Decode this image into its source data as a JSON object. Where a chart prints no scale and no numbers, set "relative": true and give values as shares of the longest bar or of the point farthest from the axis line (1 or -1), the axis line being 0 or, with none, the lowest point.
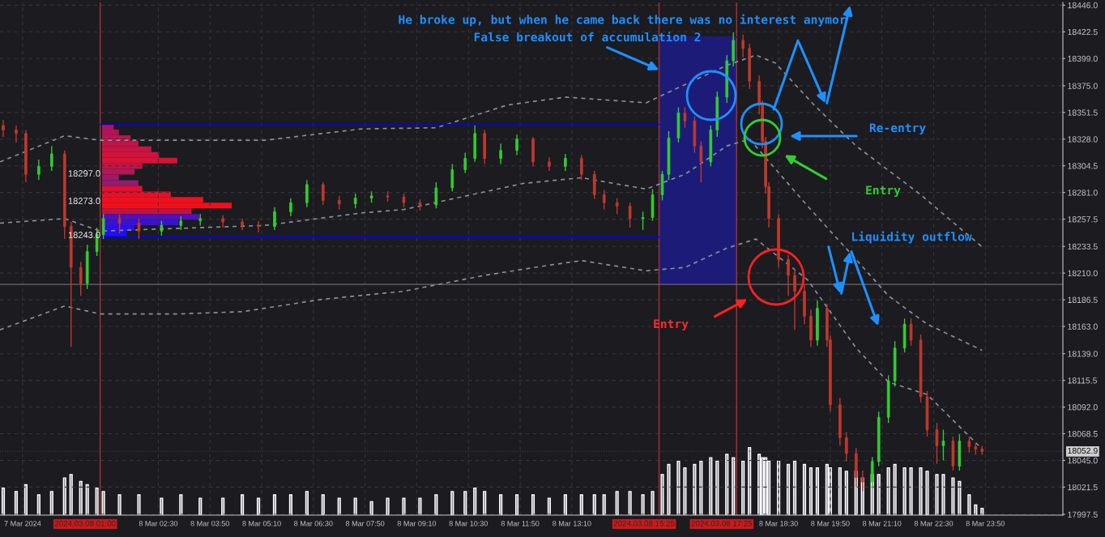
{
  "chart_data": [
    {
      "type": "candlestick",
      "x": [
        "2024-03-07T22:30",
        "2024-03-07T22:50",
        "2024-03-07T23:05",
        "2024-03-07T23:25",
        "2024-03-07T23:45",
        "2024-03-08T00:05",
        "2024-03-08T00:15",
        "2024-03-08T00:30",
        "2024-03-08T00:40",
        "2024-03-08T00:55",
        "2024-03-08T01:05",
        "2024-03-08T01:30",
        "2024-03-08T02:00",
        "2024-03-08T02:35",
        "2024-03-08T03:05",
        "2024-03-08T03:35",
        "2024-03-08T04:10",
        "2024-03-08T04:40",
        "2024-03-08T05:05",
        "2024-03-08T05:30",
        "2024-03-08T05:55",
        "2024-03-08T06:20",
        "2024-03-08T06:45",
        "2024-03-08T07:10",
        "2024-03-08T07:35",
        "2024-03-08T08:00",
        "2024-03-08T08:25",
        "2024-03-08T08:50",
        "2024-03-08T09:15",
        "2024-03-08T09:40",
        "2024-03-08T10:05",
        "2024-03-08T10:25",
        "2024-03-08T10:40",
        "2024-03-08T10:55",
        "2024-03-08T11:20",
        "2024-03-08T11:45",
        "2024-03-08T12:10",
        "2024-03-08T12:35",
        "2024-03-08T13:00",
        "2024-03-08T13:25",
        "2024-03-08T13:45",
        "2024-03-08T14:00",
        "2024-03-08T14:20",
        "2024-03-08T14:40",
        "2024-03-08T15:00",
        "2024-03-08T15:15",
        "2024-03-08T15:30",
        "2024-03-08T15:40",
        "2024-03-08T15:55",
        "2024-03-08T16:05",
        "2024-03-08T16:20",
        "2024-03-08T16:30",
        "2024-03-08T16:45",
        "2024-03-08T16:55",
        "2024-03-08T17:10",
        "2024-03-08T17:20",
        "2024-03-08T17:35",
        "2024-03-08T17:45",
        "2024-03-08T18:00",
        "2024-03-08T18:05",
        "2024-03-08T18:10",
        "2024-03-08T18:15",
        "2024-03-08T18:30",
        "2024-03-08T18:45",
        "2024-03-08T18:55",
        "2024-03-08T19:10",
        "2024-03-08T19:20",
        "2024-03-08T19:30",
        "2024-03-08T19:45",
        "2024-03-08T19:50",
        "2024-03-08T20:05",
        "2024-03-08T20:15",
        "2024-03-08T20:30",
        "2024-03-08T20:40",
        "2024-03-08T20:55",
        "2024-03-08T21:05",
        "2024-03-08T21:20",
        "2024-03-08T21:30",
        "2024-03-08T21:45",
        "2024-03-08T21:55",
        "2024-03-08T22:10",
        "2024-03-08T22:20",
        "2024-03-08T22:35",
        "2024-03-08T22:45",
        "2024-03-08T23:00",
        "2024-03-08T23:10",
        "2024-03-08T23:25",
        "2024-03-08T23:35",
        "2024-03-08T23:45"
      ],
      "ohlc": [
        [
          18340,
          18345,
          18330,
          18336
        ],
        [
          18336,
          18340,
          18325,
          18333
        ],
        [
          18333,
          18336,
          18290,
          18297
        ],
        [
          18297,
          18310,
          18292,
          18304
        ],
        [
          18304,
          18322,
          18300,
          18315
        ],
        [
          18315,
          18318,
          18240,
          18251
        ],
        [
          18251,
          18255,
          18145,
          18215
        ],
        [
          18215,
          18220,
          18190,
          18201
        ],
        [
          18201,
          18235,
          18196,
          18229
        ],
        [
          18229,
          18250,
          18225,
          18244
        ],
        [
          18244,
          18262,
          18240,
          18258
        ],
        [
          18258,
          18262,
          18245,
          18254
        ],
        [
          18254,
          18258,
          18240,
          18247
        ],
        [
          18247,
          18256,
          18243,
          18252
        ],
        [
          18252,
          18260,
          18248,
          18256
        ],
        [
          18256,
          18262,
          18252,
          18258
        ],
        [
          18258,
          18261,
          18250,
          18255
        ],
        [
          18255,
          18258,
          18248,
          18252
        ],
        [
          18252,
          18256,
          18246,
          18251
        ],
        [
          18251,
          18268,
          18248,
          18264
        ],
        [
          18264,
          18276,
          18260,
          18272
        ],
        [
          18272,
          18292,
          18268,
          18288
        ],
        [
          18288,
          18290,
          18270,
          18274
        ],
        [
          18274,
          18278,
          18266,
          18271
        ],
        [
          18271,
          18280,
          18267,
          18276
        ],
        [
          18276,
          18282,
          18272,
          18278
        ],
        [
          18278,
          18282,
          18273,
          18277
        ],
        [
          18277,
          18280,
          18268,
          18272
        ],
        [
          18272,
          18275,
          18265,
          18270
        ],
        [
          18270,
          18290,
          18267,
          18285
        ],
        [
          18285,
          18306,
          18282,
          18301
        ],
        [
          18301,
          18316,
          18298,
          18311
        ],
        [
          18311,
          18340,
          18308,
          18333
        ],
        [
          18333,
          18336,
          18306,
          18311
        ],
        [
          18311,
          18324,
          18306,
          18318
        ],
        [
          18318,
          18332,
          18314,
          18328
        ],
        [
          18328,
          18330,
          18304,
          18308
        ],
        [
          18308,
          18312,
          18300,
          18304
        ],
        [
          18304,
          18315,
          18300,
          18311
        ],
        [
          18311,
          18314,
          18292,
          18297
        ],
        [
          18297,
          18300,
          18275,
          18279
        ],
        [
          18279,
          18283,
          18266,
          18272
        ],
        [
          18272,
          18276,
          18262,
          18269
        ],
        [
          18269,
          18272,
          18250,
          18258
        ],
        [
          18258,
          18264,
          18248,
          18259
        ],
        [
          18259,
          18284,
          18256,
          18279
        ],
        [
          18279,
          18300,
          18274,
          18297
        ],
        [
          18297,
          18335,
          18292,
          18329
        ],
        [
          18329,
          18356,
          18325,
          18351
        ],
        [
          18351,
          18356,
          18338,
          18344
        ],
        [
          18344,
          18348,
          18316,
          18322
        ],
        [
          18322,
          18326,
          18290,
          18308
        ],
        [
          18308,
          18340,
          18304,
          18336
        ],
        [
          18336,
          18370,
          18330,
          18365
        ],
        [
          18365,
          18402,
          18360,
          18397
        ],
        [
          18397,
          18422,
          18392,
          18415
        ],
        [
          18415,
          18420,
          18400,
          18408
        ],
        [
          18408,
          18412,
          18372,
          18379
        ],
        [
          18379,
          18384,
          18350,
          18358
        ],
        [
          18358,
          18362,
          18320,
          18326
        ],
        [
          18326,
          18330,
          18280,
          18286
        ],
        [
          18286,
          18290,
          18250,
          18258
        ],
        [
          18258,
          18262,
          18215,
          18222
        ],
        [
          18222,
          18226,
          18190,
          18208
        ],
        [
          18208,
          18214,
          18160,
          18194
        ],
        [
          18194,
          18200,
          18165,
          18172
        ],
        [
          18172,
          18178,
          18145,
          18151
        ],
        [
          18151,
          18186,
          18146,
          18179
        ],
        [
          18179,
          18183,
          18145,
          18151
        ],
        [
          18151,
          18155,
          18088,
          18094
        ],
        [
          18094,
          18100,
          18058,
          18065
        ],
        [
          18065,
          18070,
          18044,
          18051
        ],
        [
          18051,
          18056,
          18022,
          18030
        ],
        [
          18030,
          18036,
          18018,
          18026
        ],
        [
          18026,
          18048,
          18020,
          18044
        ],
        [
          18044,
          18088,
          18040,
          18083
        ],
        [
          18083,
          18120,
          18078,
          18115
        ],
        [
          18115,
          18150,
          18110,
          18144
        ],
        [
          18144,
          18170,
          18140,
          18165
        ],
        [
          18165,
          18170,
          18146,
          18151
        ],
        [
          18151,
          18156,
          18096,
          18101
        ],
        [
          18101,
          18106,
          18066,
          18072
        ],
        [
          18072,
          18078,
          18042,
          18058
        ],
        [
          18058,
          18072,
          18045,
          18062
        ],
        [
          18062,
          18066,
          18036,
          18040
        ],
        [
          18040,
          18068,
          18036,
          18062
        ],
        [
          18062,
          18066,
          18052,
          18057
        ],
        [
          18057,
          18060,
          18050,
          18055
        ],
        [
          18055,
          18058,
          18050,
          18053
        ]
      ],
      "series": [
        {
          "type": "line",
          "color": "#8a909c",
          "line_style": "dashed",
          "x": [
            "2024-03-07T22:25",
            "2024-03-08T00:05",
            "2024-03-08T01:00",
            "2024-03-08T03:00",
            "2024-03-08T05:15",
            "2024-03-08T07:45",
            "2024-03-08T09:40",
            "2024-03-08T11:30",
            "2024-03-08T13:00",
            "2024-03-08T15:05",
            "2024-03-08T16:05",
            "2024-03-08T17:10",
            "2024-03-08T17:55",
            "2024-03-08T18:25",
            "2024-03-08T19:25",
            "2024-03-08T20:30",
            "2024-03-08T22:10",
            "2024-03-08T23:45"
          ],
          "values": [
            18308,
            18331,
            18327,
            18327,
            18327,
            18337,
            18338,
            18358,
            18365,
            18360,
            18376,
            18393,
            18402,
            18395,
            18358,
            18322,
            18279,
            18233
          ]
        },
        {
          "type": "line",
          "color": "#8a909c",
          "line_style": "dashed",
          "x": [
            "2024-03-07T22:25",
            "2024-03-08T00:05",
            "2024-03-08T01:00",
            "2024-03-08T05:15",
            "2024-03-08T07:45",
            "2024-03-08T08:50",
            "2024-03-08T11:55",
            "2024-03-08T13:25",
            "2024-03-08T15:05",
            "2024-03-08T16:05",
            "2024-03-08T17:10",
            "2024-03-08T17:45",
            "2024-03-08T19:15",
            "2024-03-08T20:30",
            "2024-03-08T21:20",
            "2024-03-08T22:20",
            "2024-03-08T23:45"
          ],
          "values": [
            18254,
            18258,
            18247,
            18252,
            18263,
            18266,
            18289,
            18294,
            18284,
            18297,
            18322,
            18328,
            18269,
            18222,
            18190,
            18165,
            18142
          ]
        },
        {
          "type": "line",
          "color": "#8a909c",
          "line_style": "dashed",
          "x": [
            "2024-03-07T22:25",
            "2024-03-08T00:05",
            "2024-03-08T01:00",
            "2024-03-08T03:00",
            "2024-03-08T04:40",
            "2024-03-08T06:45",
            "2024-03-08T08:50",
            "2024-03-08T10:55",
            "2024-03-08T12:35",
            "2024-03-08T13:25",
            "2024-03-08T15:05",
            "2024-03-08T16:05",
            "2024-03-08T17:10",
            "2024-03-08T17:55",
            "2024-03-08T19:15",
            "2024-03-08T20:30",
            "2024-03-08T21:20",
            "2024-03-08T22:20",
            "2024-03-08T23:45"
          ],
          "values": [
            18160,
            18181,
            18174,
            18174,
            18176,
            18187,
            18194,
            18208,
            18217,
            18221,
            18212,
            18215,
            18232,
            18240,
            18204,
            18144,
            18114,
            18103,
            18055
          ]
        },
        {
          "type": "line",
          "color": "#0000ff",
          "line_style": "solid",
          "x": [
            "2024-03-08T01:00",
            "2024-03-08T15:25"
          ],
          "values": [
            18341,
            18341
          ]
        },
        {
          "type": "line",
          "color": "#0000ff",
          "line_style": "solid",
          "x": [
            "2024-03-08T01:00",
            "2024-03-08T15:25"
          ],
          "values": [
            18242,
            18242
          ]
        },
        {
          "type": "line",
          "color": "#1c1c78",
          "line_style": "solid",
          "x": [
            "2024-03-08T15:25",
            "2024-03-08T17:25"
          ],
          "values": [
            18418,
            18418
          ],
          "lower": [
            18200,
            18200
          ],
          "upper": [
            18418,
            18418
          ]
        }
      ],
      "ref_lines": [
        {
          "axis": "x",
          "value": "2024-03-08T01:00",
          "label": "2024.03.08 01:00",
          "color": "#a83232"
        },
        {
          "axis": "x",
          "value": "2024-03-08T15:25",
          "label": "2024.03.08 15:25",
          "color": "#a83232"
        },
        {
          "axis": "x",
          "value": "2024-03-08T17:25",
          "label": "2024.03.08 17:25",
          "color": "#a83232"
        },
        {
          "axis": "y",
          "value": 18200,
          "color": "#6a6a70"
        },
        {
          "axis": "y",
          "value": 18052.9,
          "label": "18052.9",
          "color": "#3a3a42",
          "line_style": "dotted"
        }
      ],
      "annotations": [
        "He broke up, but when he came back there was no interest anymor",
        {
          "text": "False breakout of accumulation 2",
          "x": "2024-03-08T15:25",
          "y": 18389
        },
        "Re-entry",
        "Entry",
        "Liquidity outflow",
        "Entry",
        "18297.0",
        "18273.0",
        "18243.0"
      ],
      "xlim": [
        "2024-03-07T22:25",
        "2024-03-09T01:50"
      ],
      "ylim": [
        17996.8,
        18448.4
      ],
      "xticks": [
        {
          "value": "2024-03-07T23:00",
          "label": "7 Mar 2024"
        },
        {
          "value": "2024-03-08T02:30",
          "label": "8 Mar 02:30"
        },
        {
          "value": "2024-03-08T03:50",
          "label": "8 Mar 03:50"
        },
        {
          "value": "2024-03-08T05:10",
          "label": "8 Mar 05:10"
        },
        {
          "value": "2024-03-08T06:30",
          "label": "8 Mar 06:30"
        },
        {
          "value": "2024-03-08T07:50",
          "label": "8 Mar 07:50"
        },
        {
          "value": "2024-03-08T09:10",
          "label": "8 Mar 09:10"
        },
        {
          "value": "2024-03-08T10:30",
          "label": "8 Mar 10:30"
        },
        {
          "value": "2024-03-08T11:50",
          "label": "8 Mar 11:50"
        },
        {
          "value": "2024-03-08T13:10",
          "label": "8 Mar 13:10"
        },
        {
          "value": "2024-03-08T18:30",
          "label": "8 Mar 18:30"
        },
        {
          "value": "2024-03-08T19:50",
          "label": "8 Mar 19:50"
        },
        {
          "value": "2024-03-08T21:10",
          "label": "8 Mar 21:10"
        },
        {
          "value": "2024-03-08T22:30",
          "label": "8 Mar 22:30"
        },
        {
          "value": "2024-03-08T23:50",
          "label": "8 Mar 23:50"
        }
      ],
      "yticks": [
        {
          "value": 18446,
          "label": "18446.0"
        },
        {
          "value": 18422.5,
          "label": "18422.5"
        },
        {
          "value": 18399,
          "label": "18399.0"
        },
        {
          "value": 18375,
          "label": "18375.0"
        },
        {
          "value": 18351.5,
          "label": "18351.5"
        },
        {
          "value": 18328,
          "label": "18328.0"
        },
        {
          "value": 18304.5,
          "label": "18304.5"
        },
        {
          "value": 18281,
          "label": "18281.0"
        },
        {
          "value": 18257.5,
          "label": "18257.5"
        },
        {
          "value": 18233.5,
          "label": "18233.5"
        },
        {
          "value": 18210,
          "label": "18210.0"
        },
        {
          "value": 18186.5,
          "label": "18186.5"
        },
        {
          "value": 18163,
          "label": "18163.0"
        },
        {
          "value": 18139,
          "label": "18139.0"
        },
        {
          "value": 18115.5,
          "label": "18115.5"
        },
        {
          "value": 18092,
          "label": "18092.0"
        },
        {
          "value": 18068.5,
          "label": "18068.5"
        },
        {
          "value": 18045,
          "label": "18045.0"
        },
        {
          "value": 18021.5,
          "label": "18021.5"
        },
        {
          "value": 17997.5,
          "label": "17997.5"
        }
      ],
      "grid": true
    },
    {
      "type": "bar",
      "relative": true,
      "color": "#8e8e96",
      "xlim": [
        "2024-03-07T22:25",
        "2024-03-09T01:50"
      ],
      "x": [
        "2024-03-07T22:30",
        "2024-03-07T22:50",
        "2024-03-07T23:05",
        "2024-03-07T23:25",
        "2024-03-07T23:45",
        "2024-03-08T00:05",
        "2024-03-08T00:15",
        "2024-03-08T00:30",
        "2024-03-08T00:40",
        "2024-03-08T00:55",
        "2024-03-08T01:05",
        "2024-03-08T01:30",
        "2024-03-08T02:00",
        "2024-03-08T02:35",
        "2024-03-08T03:05",
        "2024-03-08T03:35",
        "2024-03-08T04:10",
        "2024-03-08T04:40",
        "2024-03-08T05:05",
        "2024-03-08T05:30",
        "2024-03-08T05:55",
        "2024-03-08T06:20",
        "2024-03-08T06:45",
        "2024-03-08T07:10",
        "2024-03-08T07:35",
        "2024-03-08T08:00",
        "2024-03-08T08:25",
        "2024-03-08T08:50",
        "2024-03-08T09:15",
        "2024-03-08T09:40",
        "2024-03-08T10:05",
        "2024-03-08T10:25",
        "2024-03-08T10:40",
        "2024-03-08T10:55",
        "2024-03-08T11:20",
        "2024-03-08T11:45",
        "2024-03-08T12:10",
        "2024-03-08T12:35",
        "2024-03-08T13:00",
        "2024-03-08T13:25",
        "2024-03-08T13:45",
        "2024-03-08T14:00",
        "2024-03-08T14:20",
        "2024-03-08T14:40",
        "2024-03-08T15:00",
        "2024-03-08T15:15",
        "2024-03-08T15:30",
        "2024-03-08T15:40",
        "2024-03-08T15:55",
        "2024-03-08T16:05",
        "2024-03-08T16:20",
        "2024-03-08T16:30",
        "2024-03-08T16:45",
        "2024-03-08T16:55",
        "2024-03-08T17:10",
        "2024-03-08T17:20",
        "2024-03-08T17:35",
        "2024-03-08T17:45",
        "2024-03-08T18:00",
        "2024-03-08T18:05",
        "2024-03-08T18:10",
        "2024-03-08T18:15",
        "2024-03-08T18:30",
        "2024-03-08T18:45",
        "2024-03-08T18:55",
        "2024-03-08T19:10",
        "2024-03-08T19:20",
        "2024-03-08T19:30",
        "2024-03-08T19:45",
        "2024-03-08T19:50",
        "2024-03-08T20:05",
        "2024-03-08T20:15",
        "2024-03-08T20:30",
        "2024-03-08T20:40",
        "2024-03-08T20:55",
        "2024-03-08T21:05",
        "2024-03-08T21:20",
        "2024-03-08T21:30",
        "2024-03-08T21:45",
        "2024-03-08T21:55",
        "2024-03-08T22:10",
        "2024-03-08T22:20",
        "2024-03-08T22:35",
        "2024-03-08T22:45",
        "2024-03-08T23:00",
        "2024-03-08T23:10",
        "2024-03-08T23:25",
        "2024-03-08T23:35",
        "2024-03-08T23:45"
      ],
      "values": [
        0.4,
        0.35,
        0.45,
        0.3,
        0.35,
        0.55,
        0.6,
        0.5,
        0.45,
        0.4,
        0.35,
        0.3,
        0.3,
        0.25,
        0.3,
        0.25,
        0.25,
        0.3,
        0.25,
        0.3,
        0.3,
        0.35,
        0.3,
        0.25,
        0.25,
        0.2,
        0.25,
        0.25,
        0.25,
        0.3,
        0.35,
        0.35,
        0.4,
        0.35,
        0.3,
        0.3,
        0.3,
        0.25,
        0.3,
        0.3,
        0.3,
        0.3,
        0.35,
        0.35,
        0.3,
        0.35,
        0.6,
        0.75,
        0.8,
        0.7,
        0.75,
        0.8,
        0.85,
        0.8,
        0.9,
        0.85,
        0.8,
        1,
        0.9,
        0.85,
        0.85,
        0.8,
        0.8,
        0.75,
        0.8,
        0.75,
        0.7,
        0.7,
        0.75,
        0.7,
        0.7,
        0.65,
        0.65,
        0.55,
        0.6,
        0.6,
        0.7,
        0.75,
        0.7,
        0.7,
        0.7,
        0.65,
        0.6,
        0.6,
        0.55,
        0.5,
        0.3,
        0.15,
        0.1
      ]
    },
    {
      "type": "bar",
      "orientation": "horizontal",
      "relative": true,
      "categories": [
        null,
        null,
        null,
        null,
        null,
        null,
        null,
        null,
        null,
        null,
        null,
        null,
        null,
        null,
        null,
        null,
        null,
        null,
        null,
        null
      ],
      "values": [
        0.09,
        0.13,
        0.22,
        0.28,
        0.38,
        0.44,
        0.58,
        0.31,
        0.25,
        0.13,
        0.28,
        0.31,
        0.53,
        0.78,
        1,
        0.69,
        0.75,
        0.59,
        0.25,
        0.19
      ],
      "colors": [
        "#b0145a",
        "#b0145a",
        "#b81450",
        "#c01448",
        "#c81440",
        "#d0123a",
        "#d81234",
        "#c01448",
        "#b01858",
        "#a01a66",
        "#901c74",
        "#e01030",
        "#e81028",
        "#f0101e",
        "#f0101a",
        "#c01440",
        "#5010c0",
        "#3a10d8",
        "#2810e8",
        "#2010f0"
      ]
    }
  ]
}
